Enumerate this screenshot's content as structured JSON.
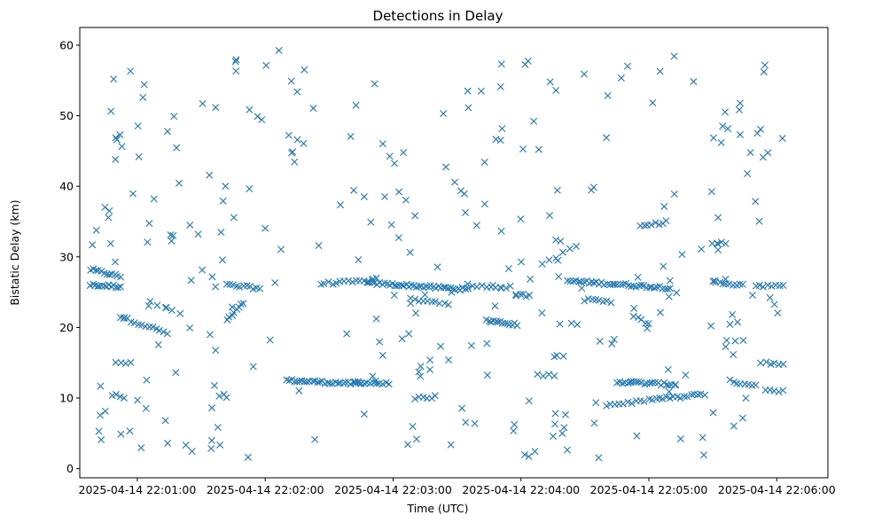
{
  "chart_data": {
    "type": "scatter",
    "title": "Detections in Delay",
    "xlabel": "Time (UTC)",
    "ylabel": "Bistatic Delay (km)",
    "marker": "x",
    "color": "#1f77b4",
    "xlim_seconds": [
      33,
      384
    ],
    "ylim": [
      -1.3,
      62.5
    ],
    "xticks": [
      {
        "t": 60,
        "label": "2025-04-14 22:01:00"
      },
      {
        "t": 120,
        "label": "2025-04-14 22:02:00"
      },
      {
        "t": 180,
        "label": "2025-04-14 22:03:00"
      },
      {
        "t": 240,
        "label": "2025-04-14 22:04:00"
      },
      {
        "t": 300,
        "label": "2025-04-14 22:05:00"
      },
      {
        "t": 360,
        "label": "2025-04-14 22:06:00"
      }
    ],
    "yticks": [
      0,
      10,
      20,
      30,
      40,
      50,
      60
    ],
    "tracks": [
      {
        "t0": 38,
        "t1": 52,
        "y0": 28.2,
        "y1": 27.2,
        "n": 12
      },
      {
        "t0": 38,
        "t1": 52,
        "y0": 26.0,
        "y1": 25.8,
        "n": 14
      },
      {
        "t0": 52,
        "t1": 74,
        "y0": 21.5,
        "y1": 19.2,
        "n": 14
      },
      {
        "t0": 66,
        "t1": 80,
        "y0": 23.5,
        "y1": 22.0,
        "n": 5
      },
      {
        "t0": 102,
        "t1": 110,
        "y0": 21.0,
        "y1": 23.5,
        "n": 8
      },
      {
        "t0": 102,
        "t1": 116,
        "y0": 26.0,
        "y1": 25.6,
        "n": 10
      },
      {
        "t0": 130,
        "t1": 165,
        "y0": 12.5,
        "y1": 12.0,
        "n": 30
      },
      {
        "t0": 162,
        "t1": 178,
        "y0": 12.3,
        "y1": 12.0,
        "n": 12
      },
      {
        "t0": 146,
        "t1": 170,
        "y0": 26.2,
        "y1": 26.6,
        "n": 14
      },
      {
        "t0": 168,
        "t1": 215,
        "y0": 26.3,
        "y1": 25.4,
        "n": 42
      },
      {
        "t0": 188,
        "t1": 206,
        "y0": 24.0,
        "y1": 23.4,
        "n": 10
      },
      {
        "t0": 190,
        "t1": 200,
        "y0": 9.9,
        "y1": 10.2,
        "n": 6
      },
      {
        "t0": 215,
        "t1": 235,
        "y0": 26.0,
        "y1": 25.7,
        "n": 10
      },
      {
        "t0": 224,
        "t1": 238,
        "y0": 21.0,
        "y1": 20.4,
        "n": 14
      },
      {
        "t0": 238,
        "t1": 244,
        "y0": 24.6,
        "y1": 24.5,
        "n": 5
      },
      {
        "t0": 250,
        "t1": 266,
        "y0": 29.0,
        "y1": 31.5,
        "n": 6
      },
      {
        "t0": 262,
        "t1": 310,
        "y0": 26.6,
        "y1": 25.6,
        "n": 40
      },
      {
        "t0": 270,
        "t1": 282,
        "y0": 23.9,
        "y1": 23.6,
        "n": 8
      },
      {
        "t0": 285,
        "t1": 312,
        "y0": 12.3,
        "y1": 11.9,
        "n": 22
      },
      {
        "t0": 280,
        "t1": 298,
        "y0": 9.0,
        "y1": 9.6,
        "n": 10
      },
      {
        "t0": 296,
        "t1": 308,
        "y0": 34.2,
        "y1": 35.0,
        "n": 8
      },
      {
        "t0": 300,
        "t1": 318,
        "y0": 9.8,
        "y1": 10.2,
        "n": 12
      },
      {
        "t0": 293,
        "t1": 300,
        "y0": 21.5,
        "y1": 20.5,
        "n": 5
      },
      {
        "t0": 320,
        "t1": 326,
        "y0": 10.5,
        "y1": 10.6,
        "n": 5
      },
      {
        "t0": 330,
        "t1": 344,
        "y0": 26.4,
        "y1": 26.0,
        "n": 10
      },
      {
        "t0": 338,
        "t1": 350,
        "y0": 12.4,
        "y1": 11.8,
        "n": 8
      },
      {
        "t0": 350,
        "t1": 363,
        "y0": 26.0,
        "y1": 25.8,
        "n": 8
      },
      {
        "t0": 355,
        "t1": 363,
        "y0": 15.0,
        "y1": 14.9,
        "n": 5
      },
      {
        "t0": 355,
        "t1": 363,
        "y0": 11.0,
        "y1": 11.0,
        "n": 5
      },
      {
        "t0": 330,
        "t1": 336,
        "y0": 32.0,
        "y1": 32.0,
        "n": 4
      },
      {
        "t0": 50,
        "t1": 57,
        "y0": 15.0,
        "y1": 15.0,
        "n": 4
      },
      {
        "t0": 48,
        "t1": 54,
        "y0": 10.5,
        "y1": 10.0,
        "n": 4
      },
      {
        "t0": 248,
        "t1": 256,
        "y0": 13.2,
        "y1": 13.2,
        "n": 4
      }
    ],
    "scatter_count": 300,
    "scatter_t_range": [
      38,
      364
    ],
    "scatter_y_range": [
      1.5,
      59.5
    ]
  }
}
